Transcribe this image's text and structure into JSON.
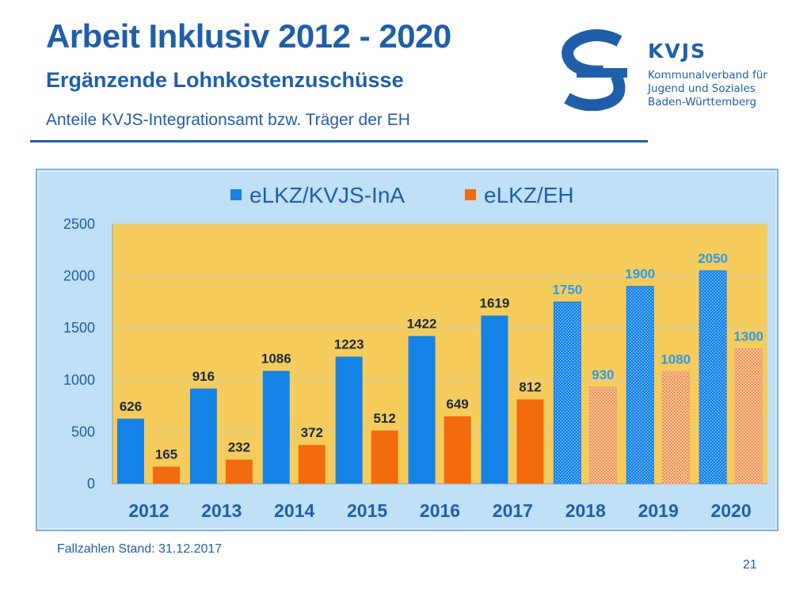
{
  "slide": {
    "title": "Arbeit Inklusiv 2012 - 2020",
    "subtitle": "Ergänzende Lohnkostenzuschüsse",
    "subtitle2": "Anteile KVJS-Integrationsamt  bzw. Träger der EH",
    "footer_note": "Fallzahlen Stand: 31.12.2017",
    "page_number": "21"
  },
  "logo": {
    "abbreviation": "KVJS",
    "lines": [
      "Kommunalverband für",
      "Jugend und Soziales",
      "Baden-Württemberg"
    ],
    "color": "#1f5fa9"
  },
  "colors": {
    "brand_blue": "#1f5fa9",
    "series_blue": "#1582e6",
    "series_orange": "#f26b0f",
    "plot_bg": "#f5cc5c",
    "frame_bg": "#bfe0f5",
    "label_blue": "#2e9be8",
    "label_dark": "#1c2a3a"
  },
  "chart_data": {
    "type": "bar",
    "categories": [
      "2012",
      "2013",
      "2014",
      "2015",
      "2016",
      "2017",
      "2018",
      "2019",
      "2020"
    ],
    "series": [
      {
        "name": "eLKZ/KVJS-InA",
        "values": [
          626,
          916,
          1086,
          1223,
          1422,
          1619,
          1750,
          1900,
          2050
        ]
      },
      {
        "name": "eLKZ/EH",
        "values": [
          165,
          232,
          372,
          512,
          649,
          812,
          930,
          1080,
          1300
        ]
      }
    ],
    "projected_categories": [
      "2018",
      "2019",
      "2020"
    ],
    "ylim": [
      0,
      2500
    ],
    "y_ticks": [
      0,
      500,
      1000,
      1500,
      2000,
      2500
    ],
    "grid": true,
    "legend_position": "top",
    "xlabel": "",
    "ylabel": ""
  }
}
